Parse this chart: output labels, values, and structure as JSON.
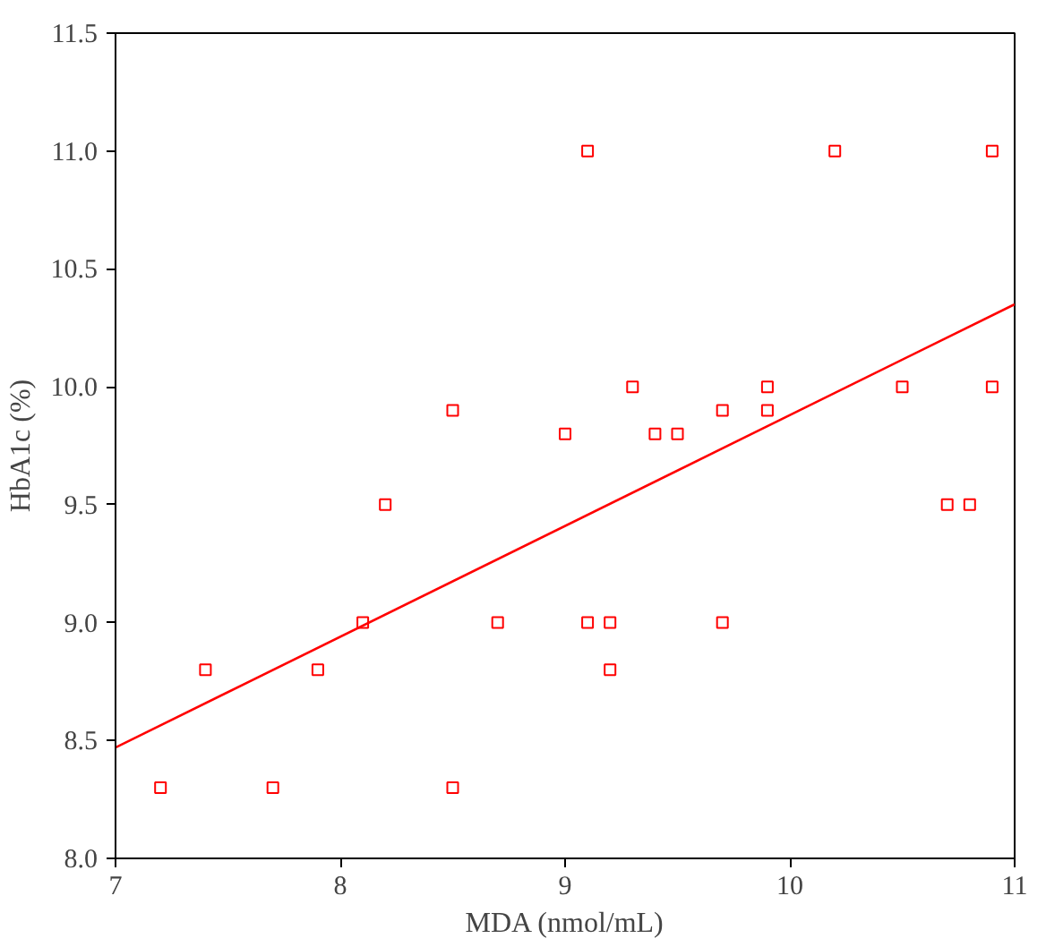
{
  "chart_data": {
    "type": "scatter",
    "xlabel": "MDA (nmol/mL)",
    "ylabel": "HbA1c (%)",
    "xlim": [
      7,
      11
    ],
    "ylim": [
      8.0,
      11.5
    ],
    "xticks": [
      7,
      8,
      9,
      10,
      11
    ],
    "yticks": [
      {
        "value": 8.0,
        "label": "8.0"
      },
      {
        "value": 8.5,
        "label": "8.5"
      },
      {
        "value": 9.0,
        "label": "9.0"
      },
      {
        "value": 9.5,
        "label": "9.5"
      },
      {
        "value": 10.0,
        "label": "10.0"
      },
      {
        "value": 10.5,
        "label": "10.5"
      },
      {
        "value": 11.0,
        "label": "11.0"
      },
      {
        "value": 11.5,
        "label": "11.5"
      }
    ],
    "grid": false,
    "series": [
      {
        "marker": "square",
        "color": "#ff0000",
        "x": [
          7.2,
          7.4,
          7.7,
          7.9,
          8.1,
          8.2,
          8.5,
          8.5,
          8.7,
          9.0,
          9.1,
          9.1,
          9.2,
          9.2,
          9.3,
          9.4,
          9.5,
          9.7,
          9.7,
          9.9,
          9.9,
          10.2,
          10.5,
          10.7,
          10.8,
          10.9,
          10.9
        ],
        "values": [
          8.3,
          8.8,
          8.3,
          8.8,
          9.0,
          9.5,
          9.9,
          8.3,
          9.0,
          9.8,
          11.0,
          9.0,
          9.0,
          8.8,
          10.0,
          9.8,
          9.8,
          9.9,
          9.0,
          10.0,
          9.9,
          11.0,
          10.0,
          9.5,
          9.5,
          11.0,
          10.0
        ]
      },
      {
        "type": "line",
        "marker": "none",
        "color": "#ff0000",
        "x": [
          7,
          11
        ],
        "values": [
          8.47,
          10.35
        ]
      }
    ]
  }
}
